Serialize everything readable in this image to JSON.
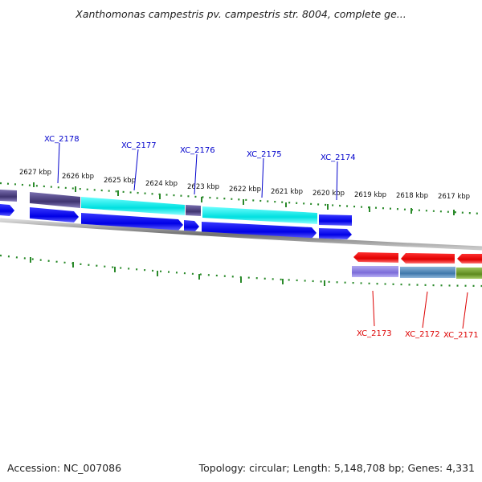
{
  "title": "Xanthomonas campestris pv. campestris str. 8004, complete ge...",
  "footer": {
    "accession": "Accession: NC_007086",
    "summary": "Topology: circular; Length: 5,148,708 bp; Genes: 4,331"
  },
  "ticks": [
    "2627 kbp",
    "2626 kbp",
    "2625 kbp",
    "2624 kbp",
    "2623 kbp",
    "2622 kbp",
    "2621 kbp",
    "2620 kbp",
    "2619 kbp",
    "2618 kbp",
    "2617 kbp"
  ],
  "genes_forward": [
    {
      "id": "XC_2178",
      "label": "XC_2178",
      "color": "#0000cc"
    },
    {
      "id": "XC_2177",
      "label": "XC_2177",
      "color": "#0000cc"
    },
    {
      "id": "XC_2176",
      "label": "XC_2176",
      "color": "#0000cc"
    },
    {
      "id": "XC_2175",
      "label": "XC_2175",
      "color": "#0000cc"
    },
    {
      "id": "XC_2174",
      "label": "XC_2174",
      "color": "#0000cc"
    }
  ],
  "genes_reverse": [
    {
      "id": "XC_2173",
      "label": "XC_2173",
      "color": "#dd0000"
    },
    {
      "id": "XC_2172",
      "label": "XC_2172",
      "color": "#dd0000"
    },
    {
      "id": "XC_2171",
      "label": "XC_2171",
      "color": "#dd0000"
    }
  ],
  "colors": {
    "cds_forward": "#0000ee",
    "cds_reverse": "#ee0000",
    "backbone": "#888888",
    "tick": "#2a8a2a",
    "cog_dark_purple": "#4b3f7a",
    "cog_cyan": "#00e5e5",
    "cog_mauve": "#8a7ab8",
    "cog_lavender": "#8a7be0",
    "cog_steelblue": "#4f86b8",
    "cog_olive": "#6f9a2a"
  }
}
